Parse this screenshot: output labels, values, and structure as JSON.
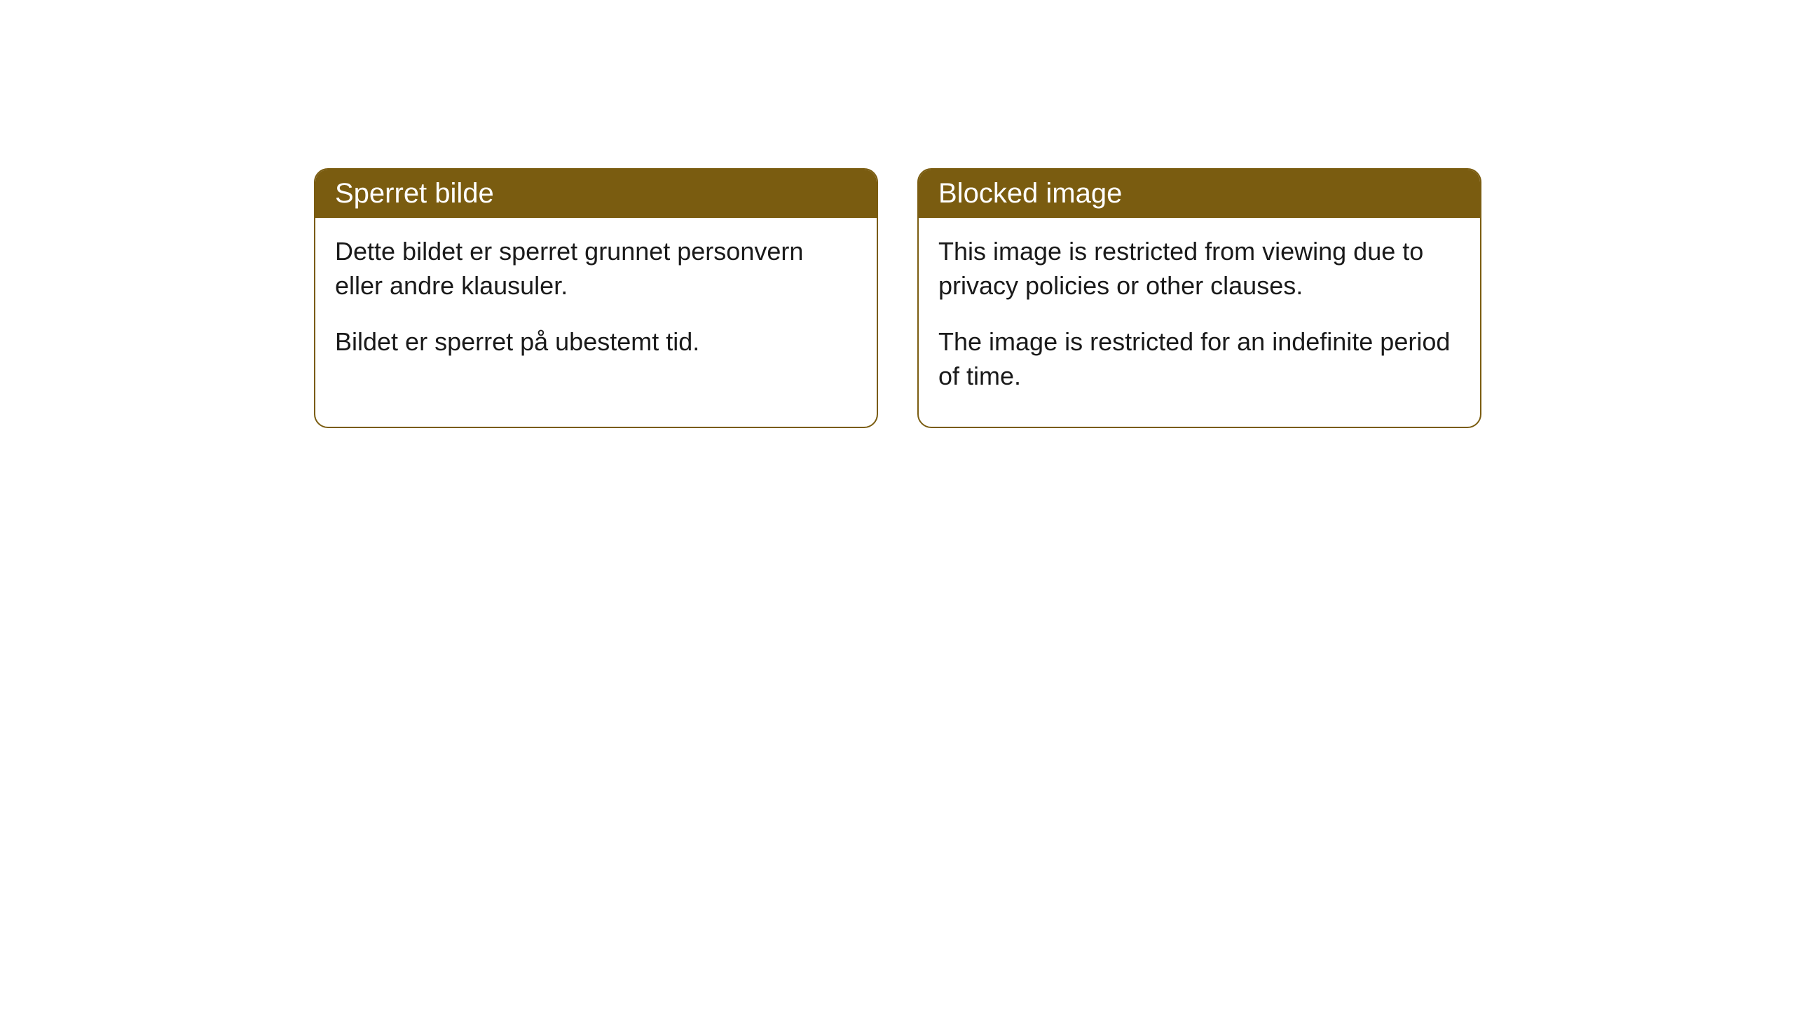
{
  "cards": [
    {
      "title": "Sperret bilde",
      "paragraph1": "Dette bildet er sperret grunnet personvern eller andre klausuler.",
      "paragraph2": "Bildet er sperret på ubestemt tid."
    },
    {
      "title": "Blocked image",
      "paragraph1": "This image is restricted from viewing due to privacy policies or other clauses.",
      "paragraph2": "The image is restricted for an indefinite period of time."
    }
  ],
  "styling": {
    "header_background": "#7a5c10",
    "header_text_color": "#ffffff",
    "border_color": "#7a5c10",
    "body_background": "#ffffff",
    "body_text_color": "#1a1a1a",
    "border_radius": 20,
    "title_fontsize": 40,
    "body_fontsize": 36
  }
}
